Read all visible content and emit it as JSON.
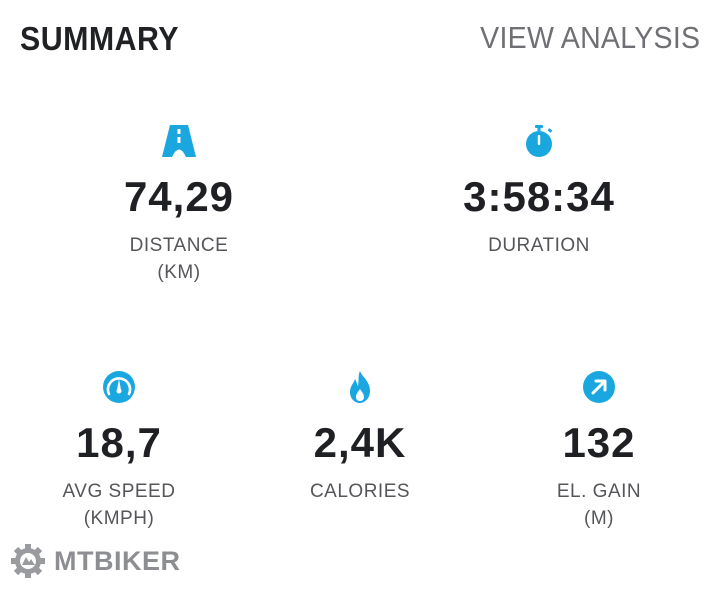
{
  "header": {
    "title": "SUMMARY",
    "link": "VIEW ANALYSIS"
  },
  "accent_color": "#1aa7e0",
  "stats": {
    "distance": {
      "icon": "road-icon",
      "value": "74,29",
      "label": "DISTANCE",
      "unit": "(KM)"
    },
    "duration": {
      "icon": "stopwatch-icon",
      "value": "3:58:34",
      "label": "DURATION"
    },
    "avg_speed": {
      "icon": "speedometer-icon",
      "value": "18,7",
      "label": "AVG SPEED",
      "unit": "(KMPH)"
    },
    "calories": {
      "icon": "flame-icon",
      "value": "2,4K",
      "label": "CALORIES"
    },
    "el_gain": {
      "icon": "arrow-up-right-icon",
      "value": "132",
      "label": "EL. GAIN",
      "unit": "(M)"
    }
  },
  "watermark": {
    "text": "MTBIKER",
    "icon": "gear-logo-icon"
  }
}
